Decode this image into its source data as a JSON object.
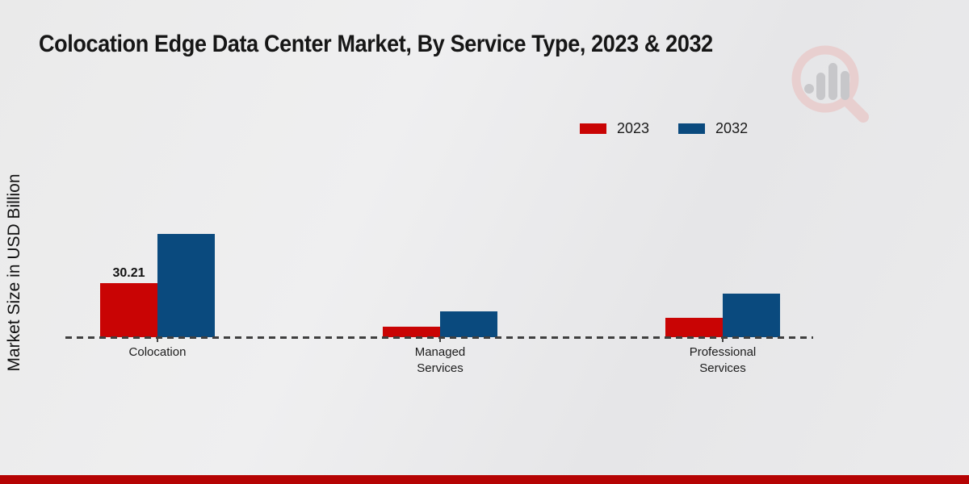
{
  "title": "Colocation Edge Data Center Market, By Service Type, 2023 & 2032",
  "y_axis_label": "Market Size in USD Billion",
  "legend": {
    "items": [
      {
        "label": "2023",
        "color": "#c90404"
      },
      {
        "label": "2032",
        "color": "#0a4a7e"
      }
    ]
  },
  "watermark": {
    "name": "market-research-magnifier-logo",
    "ring_color": "#e8cfcf",
    "bars_color": "#c7c7ca"
  },
  "footer": {
    "bar_color": "#b50303"
  },
  "chart_data": {
    "type": "bar",
    "title": "Colocation Edge Data Center Market, By Service Type, 2023 & 2032",
    "categories": [
      "Colocation",
      "Managed Services",
      "Professional Services"
    ],
    "series": [
      {
        "name": "2023",
        "color": "#c90404",
        "values": [
          30.21,
          6.0,
          11.0
        ],
        "data_labels": [
          "30.21",
          null,
          null
        ]
      },
      {
        "name": "2032",
        "color": "#0a4a7e",
        "values": [
          57.8,
          14.3,
          24.2
        ],
        "data_labels": [
          null,
          null,
          null
        ]
      }
    ],
    "xlabel": "",
    "ylabel": "Market Size in USD Billion",
    "ylim": [
      0,
      60
    ],
    "grid": false,
    "baseline_style": "dashed",
    "legend_position": "top-right"
  }
}
